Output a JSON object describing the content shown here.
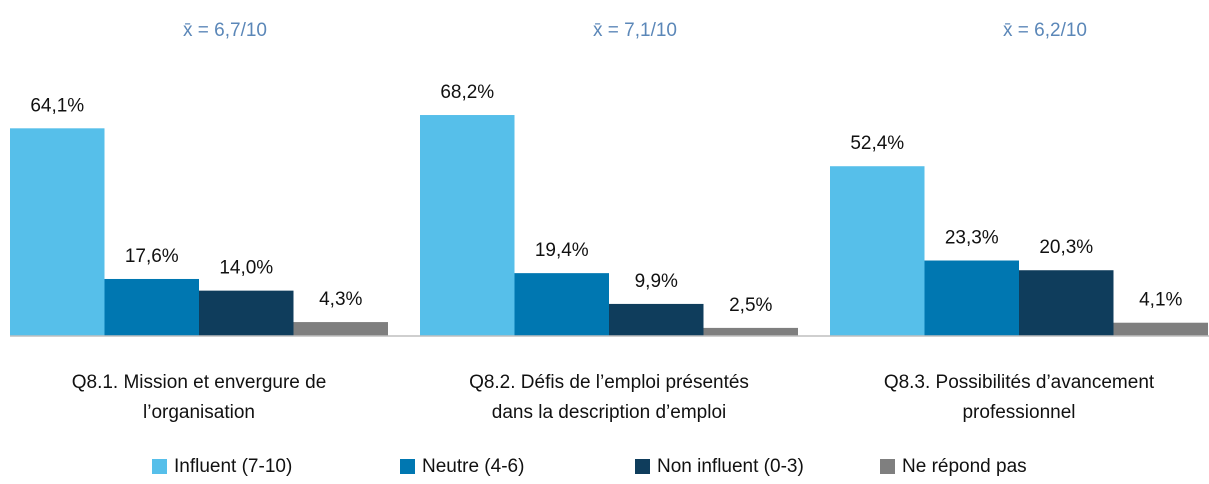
{
  "chart_data": {
    "type": "bar",
    "categories": [
      "Q8.1. Mission et envergure de l’organisation",
      "Q8.2. Défis de l’emploi présentés dans la description d’emploi",
      "Q8.3. Possibilités d’avancement professionnel"
    ],
    "annotations": [
      "x̄ = 6,7/10",
      "x̄ = 7,1/10",
      "x̄ = 6,2/10"
    ],
    "series": [
      {
        "name": "Influent (7-10)",
        "color": "#56bfea",
        "values": [
          64.1,
          68.2,
          52.4
        ],
        "value_labels": [
          "64,1%",
          "68,2%",
          "52,4%"
        ]
      },
      {
        "name": "Neutre (4-6)",
        "color": "#0077b1",
        "values": [
          17.6,
          19.4,
          23.3
        ],
        "value_labels": [
          "17,6%",
          "19,4%",
          "23,3%"
        ]
      },
      {
        "name": "Non influent (0-3)",
        "color": "#0f3d5c",
        "values": [
          14.0,
          9.9,
          20.3
        ],
        "value_labels": [
          "14,0%",
          "9,9%",
          "20,3%"
        ]
      },
      {
        "name": "Ne répond pas",
        "color": "#7f7f7f",
        "values": [
          4.3,
          2.5,
          4.1
        ],
        "value_labels": [
          "4,3%",
          "2,5%",
          "4,1%"
        ]
      }
    ],
    "ylim": [
      0,
      100
    ]
  }
}
